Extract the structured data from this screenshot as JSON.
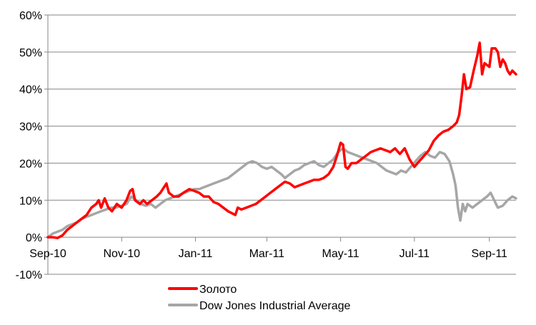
{
  "chart_data": {
    "type": "line",
    "title": "",
    "xlabel": "",
    "ylabel": "",
    "x_ticks": [
      "Sep-10",
      "Nov-10",
      "Jan-11",
      "Mar-11",
      "May-11",
      "Jul-11",
      "Sep-11"
    ],
    "x_tick_dates": [
      "2010-09-01",
      "2010-11-01",
      "2011-01-01",
      "2011-03-01",
      "2011-05-01",
      "2011-07-01",
      "2011-09-01"
    ],
    "xlim": [
      "2010-09-01",
      "2011-09-23"
    ],
    "y_ticks": [
      -10,
      0,
      10,
      20,
      30,
      40,
      50,
      60
    ],
    "y_tick_labels": [
      "-10%",
      "0%",
      "10%",
      "20%",
      "30%",
      "40%",
      "50%",
      "60%"
    ],
    "ylim": [
      -10,
      60
    ],
    "y_unit": "%",
    "grid": "horizontal",
    "legend_position": "bottom",
    "series": [
      {
        "name": "Золото",
        "color": "#ff0000",
        "points": [
          [
            "2010-09-01",
            0
          ],
          [
            "2010-09-05",
            0
          ],
          [
            "2010-09-09",
            -0.2
          ],
          [
            "2010-09-13",
            0.5
          ],
          [
            "2010-09-17",
            2
          ],
          [
            "2010-09-21",
            3
          ],
          [
            "2010-09-25",
            4
          ],
          [
            "2010-09-29",
            5
          ],
          [
            "2010-10-03",
            6
          ],
          [
            "2010-10-07",
            8
          ],
          [
            "2010-10-11",
            9
          ],
          [
            "2010-10-13",
            10
          ],
          [
            "2010-10-15",
            8
          ],
          [
            "2010-10-18",
            10.5
          ],
          [
            "2010-10-21",
            8
          ],
          [
            "2010-10-24",
            7
          ],
          [
            "2010-10-28",
            9
          ],
          [
            "2010-11-01",
            8
          ],
          [
            "2010-11-05",
            10
          ],
          [
            "2010-11-08",
            12.5
          ],
          [
            "2010-11-10",
            13
          ],
          [
            "2010-11-12",
            10
          ],
          [
            "2010-11-16",
            9
          ],
          [
            "2010-11-19",
            10
          ],
          [
            "2010-11-22",
            9
          ],
          [
            "2010-11-26",
            10
          ],
          [
            "2010-11-30",
            11
          ],
          [
            "2010-12-03",
            12
          ],
          [
            "2010-12-06",
            13.5
          ],
          [
            "2010-12-08",
            14.5
          ],
          [
            "2010-12-10",
            12
          ],
          [
            "2010-12-14",
            11
          ],
          [
            "2010-12-18",
            11
          ],
          [
            "2010-12-22",
            12
          ],
          [
            "2010-12-27",
            13
          ],
          [
            "2010-12-31",
            12.5
          ],
          [
            "2011-01-04",
            12
          ],
          [
            "2011-01-08",
            11
          ],
          [
            "2011-01-12",
            11
          ],
          [
            "2011-01-16",
            9.5
          ],
          [
            "2011-01-20",
            9
          ],
          [
            "2011-01-24",
            8
          ],
          [
            "2011-01-28",
            7
          ],
          [
            "2011-01-31",
            6.5
          ],
          [
            "2011-02-03",
            6
          ],
          [
            "2011-02-05",
            8
          ],
          [
            "2011-02-08",
            7.5
          ],
          [
            "2011-02-12",
            8
          ],
          [
            "2011-02-16",
            8.5
          ],
          [
            "2011-02-20",
            9
          ],
          [
            "2011-02-24",
            10
          ],
          [
            "2011-02-28",
            11
          ],
          [
            "2011-03-04",
            12
          ],
          [
            "2011-03-08",
            13
          ],
          [
            "2011-03-12",
            14
          ],
          [
            "2011-03-16",
            15
          ],
          [
            "2011-03-20",
            14.5
          ],
          [
            "2011-03-24",
            13.5
          ],
          [
            "2011-03-28",
            14
          ],
          [
            "2011-04-01",
            14.5
          ],
          [
            "2011-04-05",
            15
          ],
          [
            "2011-04-09",
            15.5
          ],
          [
            "2011-04-13",
            15.5
          ],
          [
            "2011-04-17",
            16
          ],
          [
            "2011-04-21",
            17
          ],
          [
            "2011-04-25",
            19
          ],
          [
            "2011-04-28",
            22
          ],
          [
            "2011-05-01",
            25.5
          ],
          [
            "2011-05-03",
            25
          ],
          [
            "2011-05-05",
            19
          ],
          [
            "2011-05-07",
            18.5
          ],
          [
            "2011-05-10",
            20
          ],
          [
            "2011-05-14",
            20
          ],
          [
            "2011-05-18",
            21
          ],
          [
            "2011-05-22",
            22
          ],
          [
            "2011-05-26",
            23
          ],
          [
            "2011-05-30",
            23.5
          ],
          [
            "2011-06-03",
            24
          ],
          [
            "2011-06-07",
            23.5
          ],
          [
            "2011-06-11",
            23
          ],
          [
            "2011-06-15",
            24
          ],
          [
            "2011-06-19",
            22.5
          ],
          [
            "2011-06-23",
            24
          ],
          [
            "2011-06-27",
            21
          ],
          [
            "2011-07-01",
            19
          ],
          [
            "2011-07-05",
            20.5
          ],
          [
            "2011-07-09",
            22
          ],
          [
            "2011-07-13",
            23.5
          ],
          [
            "2011-07-17",
            26
          ],
          [
            "2011-07-21",
            27.5
          ],
          [
            "2011-07-25",
            28.5
          ],
          [
            "2011-07-29",
            29
          ],
          [
            "2011-08-02",
            30
          ],
          [
            "2011-08-05",
            31
          ],
          [
            "2011-08-07",
            33
          ],
          [
            "2011-08-09",
            38
          ],
          [
            "2011-08-11",
            44
          ],
          [
            "2011-08-13",
            40
          ],
          [
            "2011-08-16",
            40.5
          ],
          [
            "2011-08-19",
            45
          ],
          [
            "2011-08-22",
            49
          ],
          [
            "2011-08-24",
            52.5
          ],
          [
            "2011-08-26",
            44
          ],
          [
            "2011-08-28",
            47
          ],
          [
            "2011-08-30",
            46.5
          ],
          [
            "2011-09-01",
            46
          ],
          [
            "2011-09-03",
            51
          ],
          [
            "2011-09-06",
            51
          ],
          [
            "2011-09-08",
            50
          ],
          [
            "2011-09-10",
            46
          ],
          [
            "2011-09-12",
            48
          ],
          [
            "2011-09-14",
            47
          ],
          [
            "2011-09-16",
            45
          ],
          [
            "2011-09-18",
            44
          ],
          [
            "2011-09-20",
            45
          ],
          [
            "2011-09-23",
            44
          ]
        ]
      },
      {
        "name": "Dow Jones Industrial Average",
        "color": "#a6a6a6",
        "points": [
          [
            "2010-09-01",
            0
          ],
          [
            "2010-09-05",
            1
          ],
          [
            "2010-09-09",
            1.5
          ],
          [
            "2010-09-13",
            2
          ],
          [
            "2010-09-17",
            3
          ],
          [
            "2010-09-21",
            3.5
          ],
          [
            "2010-09-25",
            4
          ],
          [
            "2010-09-29",
            5
          ],
          [
            "2010-10-03",
            5.5
          ],
          [
            "2010-10-07",
            6
          ],
          [
            "2010-10-11",
            6.5
          ],
          [
            "2010-10-15",
            7
          ],
          [
            "2010-10-19",
            7.5
          ],
          [
            "2010-10-23",
            8
          ],
          [
            "2010-10-27",
            8
          ],
          [
            "2010-11-01",
            8.5
          ],
          [
            "2010-11-05",
            9
          ],
          [
            "2010-11-09",
            11
          ],
          [
            "2010-11-13",
            10
          ],
          [
            "2010-11-17",
            9
          ],
          [
            "2010-11-21",
            8.5
          ],
          [
            "2010-11-25",
            9
          ],
          [
            "2010-11-29",
            8
          ],
          [
            "2010-12-03",
            9
          ],
          [
            "2010-12-07",
            10
          ],
          [
            "2010-12-11",
            10.5
          ],
          [
            "2010-12-15",
            11
          ],
          [
            "2010-12-19",
            11.5
          ],
          [
            "2010-12-23",
            12
          ],
          [
            "2010-12-27",
            12.5
          ],
          [
            "2010-12-31",
            13
          ],
          [
            "2011-01-04",
            13
          ],
          [
            "2011-01-08",
            13.5
          ],
          [
            "2011-01-12",
            14
          ],
          [
            "2011-01-16",
            14.5
          ],
          [
            "2011-01-20",
            15
          ],
          [
            "2011-01-24",
            15.5
          ],
          [
            "2011-01-28",
            16
          ],
          [
            "2011-02-01",
            17
          ],
          [
            "2011-02-05",
            18
          ],
          [
            "2011-02-09",
            19
          ],
          [
            "2011-02-13",
            20
          ],
          [
            "2011-02-17",
            20.5
          ],
          [
            "2011-02-21",
            20
          ],
          [
            "2011-02-25",
            19
          ],
          [
            "2011-03-01",
            18.5
          ],
          [
            "2011-03-05",
            19
          ],
          [
            "2011-03-09",
            18
          ],
          [
            "2011-03-13",
            17
          ],
          [
            "2011-03-16",
            16
          ],
          [
            "2011-03-20",
            17
          ],
          [
            "2011-03-24",
            18
          ],
          [
            "2011-03-28",
            18.5
          ],
          [
            "2011-04-01",
            19.5
          ],
          [
            "2011-04-05",
            20
          ],
          [
            "2011-04-09",
            20.5
          ],
          [
            "2011-04-13",
            19.5
          ],
          [
            "2011-04-17",
            19
          ],
          [
            "2011-04-21",
            20
          ],
          [
            "2011-04-25",
            21
          ],
          [
            "2011-04-29",
            23
          ],
          [
            "2011-05-03",
            24
          ],
          [
            "2011-05-07",
            23
          ],
          [
            "2011-05-11",
            22.5
          ],
          [
            "2011-05-15",
            22
          ],
          [
            "2011-05-19",
            21.5
          ],
          [
            "2011-05-23",
            21
          ],
          [
            "2011-05-27",
            20.5
          ],
          [
            "2011-05-31",
            20
          ],
          [
            "2011-06-04",
            19
          ],
          [
            "2011-06-08",
            18
          ],
          [
            "2011-06-12",
            17.5
          ],
          [
            "2011-06-16",
            17
          ],
          [
            "2011-06-20",
            18
          ],
          [
            "2011-06-24",
            17.5
          ],
          [
            "2011-06-28",
            19
          ],
          [
            "2011-07-02",
            20.5
          ],
          [
            "2011-07-06",
            22
          ],
          [
            "2011-07-10",
            23
          ],
          [
            "2011-07-14",
            22
          ],
          [
            "2011-07-18",
            21.5
          ],
          [
            "2011-07-22",
            23
          ],
          [
            "2011-07-26",
            22.5
          ],
          [
            "2011-07-30",
            20.5
          ],
          [
            "2011-08-02",
            17
          ],
          [
            "2011-08-04",
            14
          ],
          [
            "2011-08-06",
            8
          ],
          [
            "2011-08-08",
            4.5
          ],
          [
            "2011-08-10",
            9
          ],
          [
            "2011-08-12",
            7
          ],
          [
            "2011-08-14",
            9
          ],
          [
            "2011-08-18",
            8
          ],
          [
            "2011-08-22",
            9
          ],
          [
            "2011-08-26",
            10
          ],
          [
            "2011-08-30",
            11
          ],
          [
            "2011-09-02",
            12
          ],
          [
            "2011-09-05",
            10
          ],
          [
            "2011-09-08",
            8
          ],
          [
            "2011-09-12",
            8.5
          ],
          [
            "2011-09-16",
            10
          ],
          [
            "2011-09-20",
            11
          ],
          [
            "2011-09-23",
            10.5
          ]
        ]
      }
    ]
  }
}
